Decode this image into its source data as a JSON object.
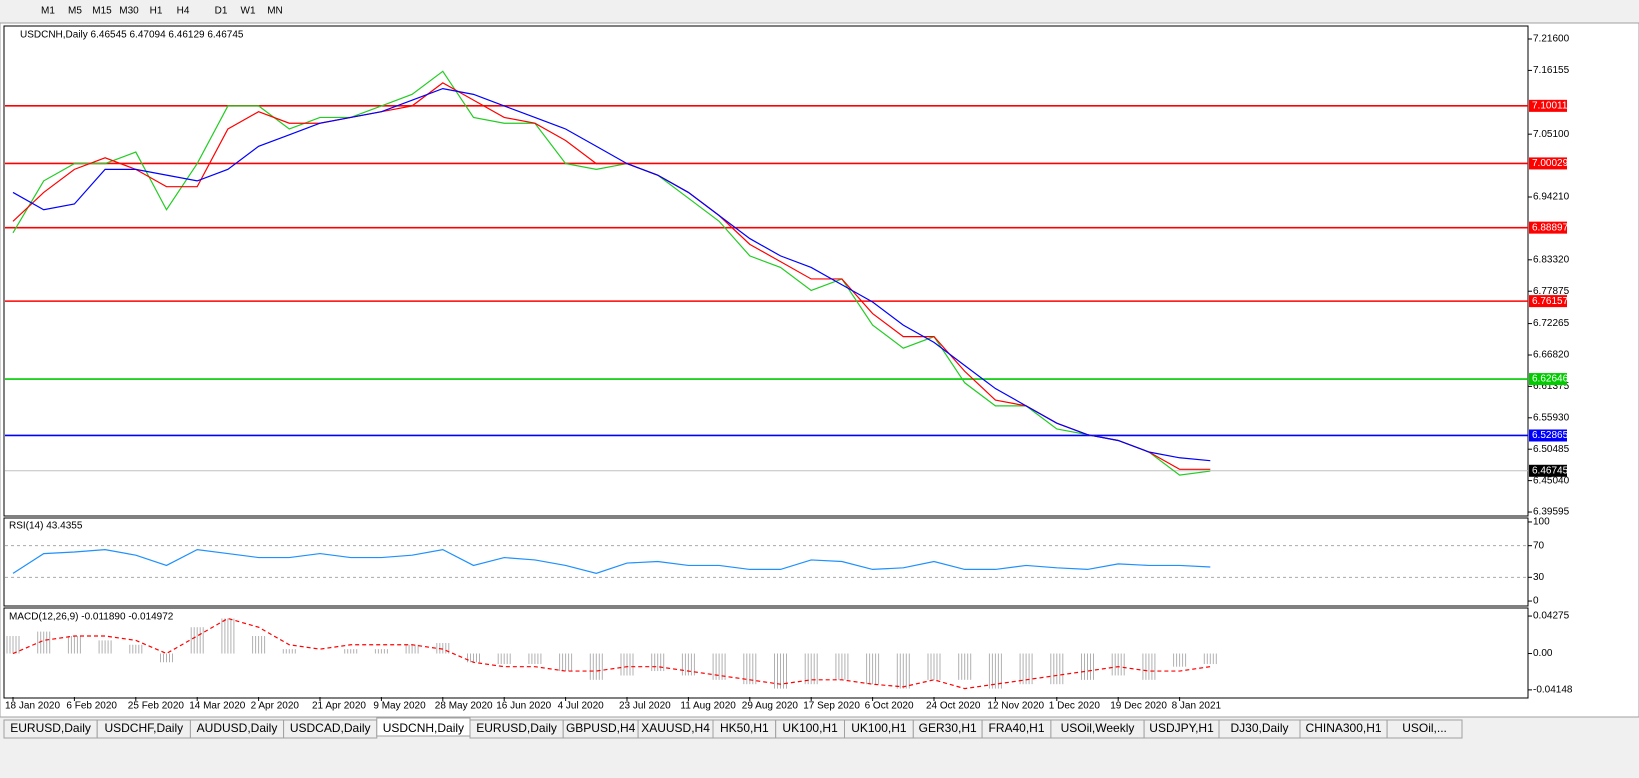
{
  "toolbar": {
    "timeframes": [
      "M1",
      "M5",
      "M15",
      "M30",
      "H1",
      "H4",
      "D1",
      "W1",
      "MN"
    ]
  },
  "tabs": [
    "EURUSD,Daily",
    "USDCHF,Daily",
    "AUDUSD,Daily",
    "USDCAD,Daily",
    "USDCNH,Daily",
    "EURUSD,Daily",
    "GBPUSD,H4",
    "XAUUSD,H4",
    "HK50,H1",
    "UK100,H1",
    "UK100,H1",
    "GER30,H1",
    "FRA40,H1",
    "USOil,Weekly",
    "USDJPY,H1",
    "DJ30,Daily",
    "CHINA300,H1",
    "USOil,..."
  ],
  "active_tab": 4,
  "chart_data": [
    {
      "type": "line",
      "title": "USDCNH,Daily  6.46545 6.47094 6.46129 6.46745",
      "ylim": [
        6.3908,
        7.2368
      ],
      "yticks": [
        {
          "value": 7.216,
          "label": "7.21600"
        },
        {
          "value": 7.16155,
          "label": "7.16155"
        },
        {
          "value": 7.051,
          "label": "7.05100"
        },
        {
          "value": 6.9421,
          "label": "6.94210"
        },
        {
          "value": 6.8332,
          "label": "6.83320"
        },
        {
          "value": 6.77875,
          "label": "6.77875"
        },
        {
          "value": 6.72265,
          "label": "6.72265"
        },
        {
          "value": 6.6682,
          "label": "6.66820"
        },
        {
          "value": 6.61375,
          "label": "6.61375"
        },
        {
          "value": 6.5593,
          "label": "6.55930"
        },
        {
          "value": 6.50485,
          "label": "6.50485"
        },
        {
          "value": 6.4504,
          "label": "6.45040"
        },
        {
          "value": 6.39595,
          "label": "6.39595"
        }
      ],
      "levels": [
        {
          "value": 7.10011,
          "color": "#ff0000"
        },
        {
          "value": 7.00029,
          "color": "#ff0000"
        },
        {
          "value": 6.88897,
          "color": "#ff0000"
        },
        {
          "value": 6.76157,
          "color": "#ff0000"
        },
        {
          "value": 6.62646,
          "color": "#00cc00"
        },
        {
          "value": 6.52865,
          "color": "#0000ff"
        },
        {
          "value": 6.46745,
          "color": "#000000"
        }
      ],
      "series": [
        {
          "color": "#22cc22",
          "values": [
            6.88,
            6.97,
            7.0,
            7.0,
            7.02,
            6.92,
            7.0,
            7.1,
            7.1,
            7.06,
            7.08,
            7.08,
            7.1,
            7.12,
            7.16,
            7.08,
            7.07,
            7.07,
            7.0,
            6.99,
            7.0,
            6.98,
            6.94,
            6.9,
            6.84,
            6.82,
            6.78,
            6.8,
            6.72,
            6.68,
            6.7,
            6.62,
            6.58,
            6.58,
            6.54,
            6.53,
            6.52,
            6.5,
            6.46,
            6.467
          ]
        },
        {
          "color": "#ff0000",
          "values": [
            6.9,
            6.95,
            6.99,
            7.01,
            6.99,
            6.96,
            6.96,
            7.06,
            7.09,
            7.07,
            7.07,
            7.08,
            7.09,
            7.1,
            7.14,
            7.11,
            7.08,
            7.07,
            7.04,
            7.0,
            7.0,
            6.98,
            6.95,
            6.91,
            6.86,
            6.83,
            6.8,
            6.8,
            6.74,
            6.7,
            6.7,
            6.64,
            6.59,
            6.58,
            6.55,
            6.53,
            6.52,
            6.5,
            6.47,
            6.47
          ]
        },
        {
          "color": "#0000ff",
          "values": [
            6.95,
            6.92,
            6.93,
            6.99,
            6.99,
            6.98,
            6.97,
            6.99,
            7.03,
            7.05,
            7.07,
            7.08,
            7.09,
            7.11,
            7.13,
            7.12,
            7.1,
            7.08,
            7.06,
            7.03,
            7.0,
            6.98,
            6.95,
            6.91,
            6.87,
            6.84,
            6.82,
            6.79,
            6.76,
            6.72,
            6.69,
            6.65,
            6.61,
            6.58,
            6.55,
            6.53,
            6.52,
            6.5,
            6.49,
            6.485
          ]
        }
      ]
    },
    {
      "type": "line",
      "title": "RSI(14) 43.4355",
      "ylim": [
        -5,
        105
      ],
      "yticks": [
        100,
        70,
        30,
        0
      ],
      "levels": [
        70,
        30
      ],
      "series": [
        {
          "color": "#1e90ff",
          "values": [
            35,
            60,
            62,
            65,
            58,
            45,
            65,
            60,
            55,
            55,
            60,
            55,
            55,
            58,
            65,
            45,
            55,
            52,
            45,
            35,
            48,
            50,
            45,
            45,
            40,
            40,
            52,
            50,
            40,
            42,
            50,
            40,
            40,
            45,
            42,
            40,
            47,
            45,
            45,
            43
          ]
        }
      ]
    },
    {
      "type": "macd",
      "title": "MACD(12,26,9) -0.011890 -0.014972",
      "ylim": [
        -0.0496,
        0.0508
      ],
      "yticks": [
        0.04275,
        {
          "value": 0,
          "label": "0.00"
        },
        -0.04148
      ],
      "categories": [
        "18 Jan 2020",
        null,
        "6 Feb 2020",
        null,
        "25 Feb 2020",
        null,
        "14 Mar 2020",
        null,
        "2 Apr 2020",
        null,
        "21 Apr 2020",
        null,
        "9 May 2020",
        null,
        "28 May 2020",
        null,
        "16 Jun 2020",
        null,
        "4 Jul 2020",
        null,
        "23 Jul 2020",
        null,
        "11 Aug 2020",
        null,
        "29 Aug 2020",
        null,
        "17 Sep 2020",
        null,
        "6 Oct 2020",
        null,
        "24 Oct 2020",
        null,
        "12 Nov 2020",
        null,
        "1 Dec 2020",
        null,
        "19 Dec 2020",
        null,
        "8 Jan 2021",
        null
      ],
      "series": [
        {
          "color": "#b0b0b0",
          "values": [
            0.02,
            0.025,
            0.02,
            0.015,
            0.01,
            -0.01,
            0.03,
            0.04,
            0.02,
            0.005,
            0.0,
            0.005,
            0.005,
            0.01,
            0.012,
            -0.01,
            -0.012,
            -0.012,
            -0.02,
            -0.03,
            -0.025,
            -0.02,
            -0.025,
            -0.03,
            -0.035,
            -0.04,
            -0.035,
            -0.03,
            -0.035,
            -0.04,
            -0.03,
            -0.03,
            -0.04,
            -0.035,
            -0.035,
            -0.03,
            -0.025,
            -0.03,
            -0.015,
            -0.012
          ]
        },
        {
          "color": "#ff0000",
          "values": [
            0.0,
            0.015,
            0.02,
            0.02,
            0.015,
            0.0,
            0.02,
            0.04,
            0.03,
            0.01,
            0.005,
            0.01,
            0.01,
            0.01,
            0.005,
            -0.01,
            -0.015,
            -0.015,
            -0.02,
            -0.02,
            -0.015,
            -0.015,
            -0.02,
            -0.025,
            -0.03,
            -0.035,
            -0.03,
            -0.03,
            -0.035,
            -0.038,
            -0.03,
            -0.04,
            -0.035,
            -0.03,
            -0.025,
            -0.02,
            -0.015,
            -0.02,
            -0.02,
            -0.015
          ]
        }
      ]
    }
  ]
}
